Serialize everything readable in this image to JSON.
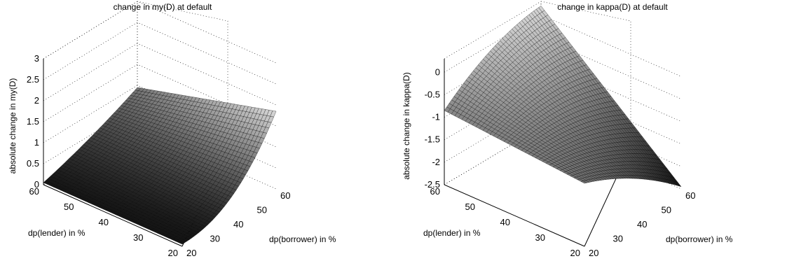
{
  "chart_data": [
    {
      "type": "surface",
      "title": "change in my(D) at default",
      "xlabel": "dp(borrower) in %",
      "ylabel": "dp(lender) in %",
      "zlabel": "absolute change in my(D)",
      "x_ticks": [
        "20",
        "30",
        "40",
        "50",
        "60"
      ],
      "y_ticks": [
        "20",
        "30",
        "40",
        "50",
        "60"
      ],
      "z_ticks": [
        "0",
        "0.5",
        "1",
        "1.5",
        "2",
        "2.5",
        "3"
      ],
      "xlim": [
        20,
        60
      ],
      "ylim": [
        20,
        60
      ],
      "zlim": [
        0,
        3
      ],
      "grid": true,
      "colormap": "gray",
      "corner_values": [
        {
          "x": 20,
          "y": 20,
          "z": 0.05
        },
        {
          "x": 60,
          "y": 20,
          "z": 1.85
        },
        {
          "x": 60,
          "y": 60,
          "z": 0.9
        },
        {
          "x": 20,
          "y": 60,
          "z": 0.0
        }
      ]
    },
    {
      "type": "surface",
      "title": "change in kappa(D) at default",
      "xlabel": "dp(borrower) in %",
      "ylabel": "dp(lender) in %",
      "zlabel": "absolute change in kappa(D)",
      "x_ticks": [
        "20",
        "30",
        "40",
        "50",
        "60"
      ],
      "y_ticks": [
        "20",
        "30",
        "40",
        "50",
        "60"
      ],
      "z_ticks": [
        "-2.5",
        "-2",
        "-1.5",
        "-1",
        "-0.5",
        "0"
      ],
      "xlim": [
        20,
        60
      ],
      "ylim": [
        20,
        60
      ],
      "zlim": [
        -2.5,
        0.3
      ],
      "grid": true,
      "colormap": "gray",
      "corner_values": [
        {
          "x": 20,
          "y": 20,
          "z": -1.1
        },
        {
          "x": 60,
          "y": 20,
          "z": -2.2
        },
        {
          "x": 60,
          "y": 60,
          "z": 0.2
        },
        {
          "x": 20,
          "y": 60,
          "z": -0.85
        }
      ]
    }
  ]
}
